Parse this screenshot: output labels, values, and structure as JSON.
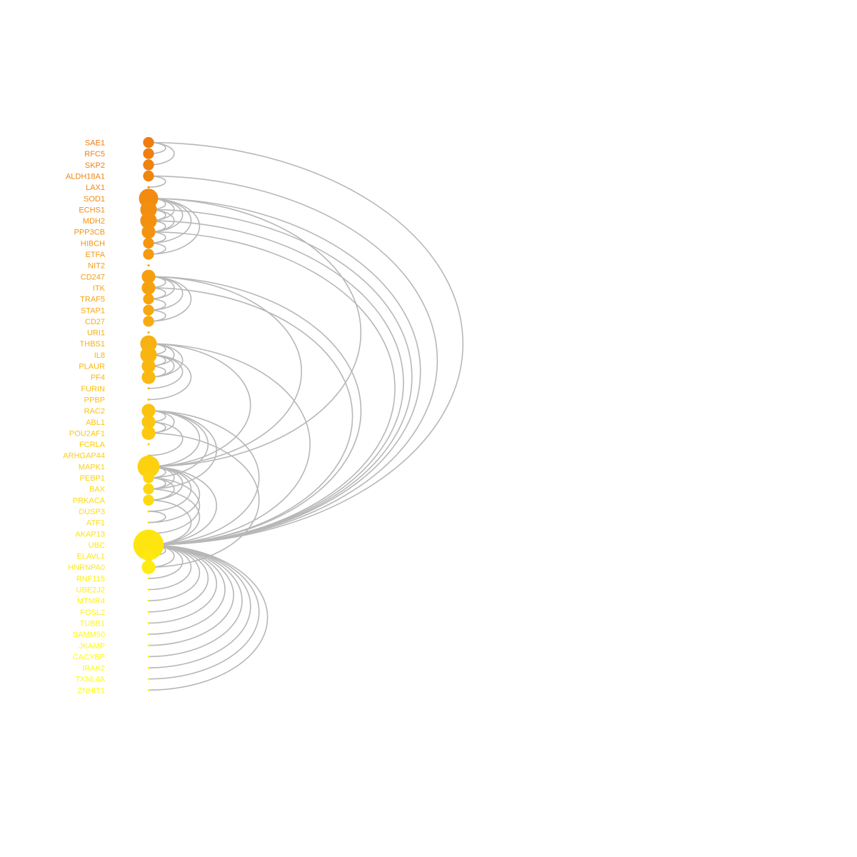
{
  "nodes": [
    {
      "label": "SAE1",
      "size": 3,
      "color": "#f07c10"
    },
    {
      "label": "RFC5",
      "size": 3,
      "color": "#f07f10"
    },
    {
      "label": "SKP2",
      "size": 3,
      "color": "#f08210"
    },
    {
      "label": "ALDH18A1",
      "size": 3,
      "color": "#f08510"
    },
    {
      "label": "LAX1",
      "size": 1,
      "color": "#f18810"
    },
    {
      "label": "SOD1",
      "size": 6,
      "color": "#f28b10"
    },
    {
      "label": "ECHS1",
      "size": 5,
      "color": "#f28e10"
    },
    {
      "label": "MDH2",
      "size": 5,
      "color": "#f39010"
    },
    {
      "label": "PPP3CB",
      "size": 4,
      "color": "#f39310"
    },
    {
      "label": "HIBCH",
      "size": 3,
      "color": "#f49610"
    },
    {
      "label": "ETFA",
      "size": 3,
      "color": "#f49910"
    },
    {
      "label": "NIT2",
      "size": 1,
      "color": "#f59c10"
    },
    {
      "label": "CD247",
      "size": 4,
      "color": "#f59f10"
    },
    {
      "label": "ITK",
      "size": 4,
      "color": "#f6a210"
    },
    {
      "label": "TRAF5",
      "size": 3,
      "color": "#f6a510"
    },
    {
      "label": "STAP1",
      "size": 3,
      "color": "#f7a810"
    },
    {
      "label": "CD27",
      "size": 3,
      "color": "#f7ab10"
    },
    {
      "label": "URI1",
      "size": 1,
      "color": "#f8ae10"
    },
    {
      "label": "THBS1",
      "size": 5,
      "color": "#f8b110"
    },
    {
      "label": "IL8",
      "size": 5,
      "color": "#f9b410"
    },
    {
      "label": "PLAUR",
      "size": 4,
      "color": "#f9b710"
    },
    {
      "label": "PF4",
      "size": 4,
      "color": "#fab910"
    },
    {
      "label": "FURIN",
      "size": 1,
      "color": "#fabc10"
    },
    {
      "label": "PPBP",
      "size": 1,
      "color": "#fbbf10"
    },
    {
      "label": "RAC2",
      "size": 4,
      "color": "#fbc210"
    },
    {
      "label": "ABL1",
      "size": 4,
      "color": "#fcc510"
    },
    {
      "label": "POU2AF1",
      "size": 4,
      "color": "#fcc810"
    },
    {
      "label": "FCRLA",
      "size": 1,
      "color": "#fccb10"
    },
    {
      "label": "ARHGAP44",
      "size": 1,
      "color": "#fdce10"
    },
    {
      "label": "MAPK1",
      "size": 7,
      "color": "#fdd110"
    },
    {
      "label": "PEBP1",
      "size": 3,
      "color": "#fdd410"
    },
    {
      "label": "BAX",
      "size": 3,
      "color": "#fdd710"
    },
    {
      "label": "PRKACA",
      "size": 3,
      "color": "#fed910"
    },
    {
      "label": "DUSP3",
      "size": 1,
      "color": "#fedc10"
    },
    {
      "label": "ATF1",
      "size": 1,
      "color": "#fedf10"
    },
    {
      "label": "AKAP13",
      "size": 1,
      "color": "#fee210"
    },
    {
      "label": "UBC",
      "size": 10,
      "color": "#fee510"
    },
    {
      "label": "ELAVL1",
      "size": 3,
      "color": "#ffe810"
    },
    {
      "label": "HNRNPA0",
      "size": 4,
      "color": "#ffeb10"
    },
    {
      "label": "RNF115",
      "size": 1,
      "color": "#ffee10"
    },
    {
      "label": "UBE2J2",
      "size": 1,
      "color": "#fff010"
    },
    {
      "label": "MTMR4",
      "size": 1,
      "color": "#fff210"
    },
    {
      "label": "FOSL2",
      "size": 1,
      "color": "#fff410"
    },
    {
      "label": "TUBB1",
      "size": 1,
      "color": "#fff610"
    },
    {
      "label": "SAMM50",
      "size": 1,
      "color": "#fff810"
    },
    {
      "label": "JKAMP",
      "size": 1,
      "color": "#fffa10"
    },
    {
      "label": "CACYBP",
      "size": 1,
      "color": "#fffb10"
    },
    {
      "label": "IRAK2",
      "size": 1,
      "color": "#fffc10"
    },
    {
      "label": "TXNL4A",
      "size": 1,
      "color": "#fffd10"
    },
    {
      "label": "ZNHIT1",
      "size": 1,
      "color": "#fffe10"
    }
  ],
  "edges": [
    [
      0,
      1
    ],
    [
      0,
      2
    ],
    [
      0,
      36
    ],
    [
      3,
      4
    ],
    [
      3,
      36
    ],
    [
      5,
      6
    ],
    [
      5,
      7
    ],
    [
      5,
      8
    ],
    [
      5,
      9
    ],
    [
      5,
      10
    ],
    [
      5,
      29
    ],
    [
      5,
      36
    ],
    [
      6,
      7
    ],
    [
      6,
      8
    ],
    [
      6,
      36
    ],
    [
      7,
      8
    ],
    [
      7,
      36
    ],
    [
      8,
      9
    ],
    [
      8,
      36
    ],
    [
      9,
      10
    ],
    [
      12,
      13
    ],
    [
      12,
      14
    ],
    [
      12,
      15
    ],
    [
      12,
      16
    ],
    [
      12,
      29
    ],
    [
      12,
      36
    ],
    [
      13,
      14
    ],
    [
      13,
      36
    ],
    [
      14,
      15
    ],
    [
      15,
      16
    ],
    [
      18,
      19
    ],
    [
      18,
      20
    ],
    [
      18,
      21
    ],
    [
      18,
      29
    ],
    [
      18,
      36
    ],
    [
      19,
      20
    ],
    [
      19,
      21
    ],
    [
      19,
      22
    ],
    [
      19,
      23
    ],
    [
      20,
      21
    ],
    [
      24,
      25
    ],
    [
      24,
      26
    ],
    [
      24,
      29
    ],
    [
      24,
      30
    ],
    [
      24,
      31
    ],
    [
      24,
      36
    ],
    [
      25,
      26
    ],
    [
      25,
      28
    ],
    [
      26,
      38
    ],
    [
      29,
      30
    ],
    [
      29,
      31
    ],
    [
      29,
      32
    ],
    [
      29,
      33
    ],
    [
      29,
      34
    ],
    [
      29,
      36
    ],
    [
      30,
      31
    ],
    [
      30,
      32
    ],
    [
      30,
      35
    ],
    [
      31,
      36
    ],
    [
      32,
      36
    ],
    [
      33,
      34
    ],
    [
      36,
      37
    ],
    [
      36,
      38
    ],
    [
      36,
      39
    ],
    [
      36,
      40
    ],
    [
      36,
      41
    ],
    [
      36,
      42
    ],
    [
      36,
      43
    ],
    [
      36,
      44
    ],
    [
      36,
      45
    ],
    [
      36,
      46
    ],
    [
      36,
      47
    ],
    [
      36,
      48
    ],
    [
      36,
      49
    ]
  ],
  "edge_color": "#b7b7b7"
}
